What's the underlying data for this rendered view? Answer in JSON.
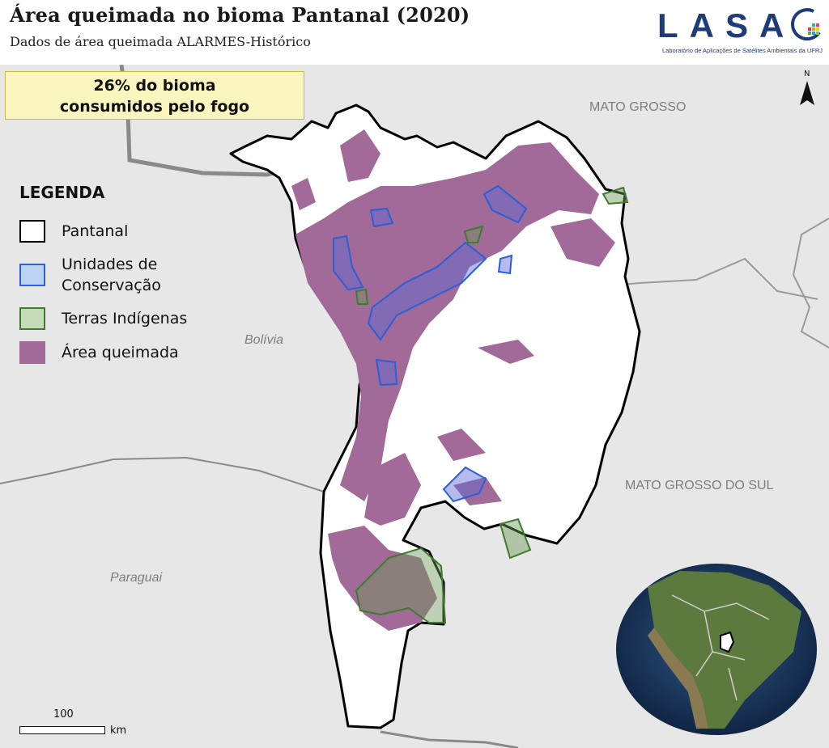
{
  "header": {
    "title": "Área queimada no bioma Pantanal (2020)",
    "subtitle": "Dados de área queimada ALARMES-Histórico"
  },
  "logo": {
    "wordmark": "LASA",
    "tagline": "Laboratório de Aplicações de Satélites Ambientais da UFRJ"
  },
  "callout": {
    "line1": "26% do bioma",
    "line2": "consumidos pelo fogo"
  },
  "legend": {
    "title": "LEGENDA",
    "items": [
      {
        "label": "Pantanal",
        "fill": "#ffffff",
        "stroke": "#000000"
      },
      {
        "label": "Unidades de Conservação",
        "line1": "Unidades de",
        "line2": "Conservação",
        "fill": "#bcd3f3",
        "stroke": "#2a5fd6"
      },
      {
        "label": "Terras Indígenas",
        "fill": "#c6dcb8",
        "stroke": "#3f7a2e"
      },
      {
        "label": "Área queimada",
        "fill": "#a26a98",
        "stroke": "#a26a98"
      }
    ]
  },
  "map_labels": {
    "mato_grosso": "MATO GROSSO",
    "mato_grosso_do_sul": "MATO GROSSO DO SUL",
    "bolivia": "Bolívia",
    "paraguai": "Paraguai"
  },
  "north_arrow": {
    "label": "N"
  },
  "scale_bar": {
    "value": "100",
    "unit": "km"
  },
  "colors": {
    "map_background": "#e7e7e7",
    "burned": "#a26a98",
    "conservation_fill": "#5a6bd6",
    "conservation_stroke": "#2a5fd6",
    "indigenous_fill": "#6d9a58",
    "indigenous_stroke": "#3f7a2e",
    "title": "#1a1a1a",
    "logo": "#1d3c78"
  }
}
